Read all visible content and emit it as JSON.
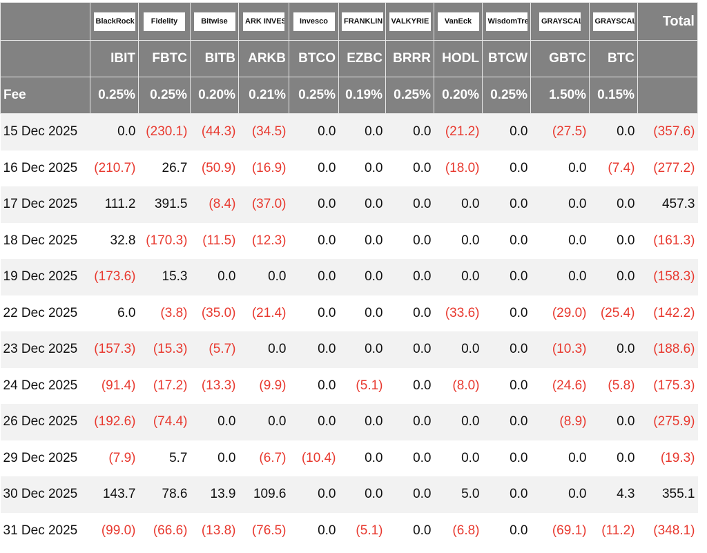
{
  "logos": [
    "BlackRock",
    "Fidelity",
    "Bitwise",
    "ARK INVEST",
    "Invesco",
    "FRANKLIN TEMPLETON",
    "VALKYRIE",
    "VanEck",
    "WisdomTree",
    "GRAYSCALE",
    "GRAYSCALE"
  ],
  "total_label": "Total",
  "tickers": [
    "IBIT",
    "FBTC",
    "BITB",
    "ARKB",
    "BTCO",
    "EZBC",
    "BRRR",
    "HODL",
    "BTCW",
    "GBTC",
    "BTC"
  ],
  "fee_label": "Fee",
  "fees": [
    "0.25%",
    "0.25%",
    "0.20%",
    "0.21%",
    "0.25%",
    "0.19%",
    "0.25%",
    "0.20%",
    "0.25%",
    "1.50%",
    "0.15%"
  ],
  "colors": {
    "header_bg": "#828282",
    "negative": "#e8392f",
    "stripe": "#f2f2f2"
  },
  "rows": [
    {
      "date": "15 Dec 2025",
      "values": [
        "0.0",
        "(230.1)",
        "(44.3)",
        "(34.5)",
        "0.0",
        "0.0",
        "0.0",
        "(21.2)",
        "0.0",
        "(27.5)",
        "0.0",
        "(357.6)"
      ]
    },
    {
      "date": "16 Dec 2025",
      "values": [
        "(210.7)",
        "26.7",
        "(50.9)",
        "(16.9)",
        "0.0",
        "0.0",
        "0.0",
        "(18.0)",
        "0.0",
        "0.0",
        "(7.4)",
        "(277.2)"
      ]
    },
    {
      "date": "17 Dec 2025",
      "values": [
        "111.2",
        "391.5",
        "(8.4)",
        "(37.0)",
        "0.0",
        "0.0",
        "0.0",
        "0.0",
        "0.0",
        "0.0",
        "0.0",
        "457.3"
      ]
    },
    {
      "date": "18 Dec 2025",
      "values": [
        "32.8",
        "(170.3)",
        "(11.5)",
        "(12.3)",
        "0.0",
        "0.0",
        "0.0",
        "0.0",
        "0.0",
        "0.0",
        "0.0",
        "(161.3)"
      ]
    },
    {
      "date": "19 Dec 2025",
      "values": [
        "(173.6)",
        "15.3",
        "0.0",
        "0.0",
        "0.0",
        "0.0",
        "0.0",
        "0.0",
        "0.0",
        "0.0",
        "0.0",
        "(158.3)"
      ]
    },
    {
      "date": "22 Dec 2025",
      "values": [
        "6.0",
        "(3.8)",
        "(35.0)",
        "(21.4)",
        "0.0",
        "0.0",
        "0.0",
        "(33.6)",
        "0.0",
        "(29.0)",
        "(25.4)",
        "(142.2)"
      ]
    },
    {
      "date": "23 Dec 2025",
      "values": [
        "(157.3)",
        "(15.3)",
        "(5.7)",
        "0.0",
        "0.0",
        "0.0",
        "0.0",
        "0.0",
        "0.0",
        "(10.3)",
        "0.0",
        "(188.6)"
      ]
    },
    {
      "date": "24 Dec 2025",
      "values": [
        "(91.4)",
        "(17.2)",
        "(13.3)",
        "(9.9)",
        "0.0",
        "(5.1)",
        "0.0",
        "(8.0)",
        "0.0",
        "(24.6)",
        "(5.8)",
        "(175.3)"
      ]
    },
    {
      "date": "26 Dec 2025",
      "values": [
        "(192.6)",
        "(74.4)",
        "0.0",
        "0.0",
        "0.0",
        "0.0",
        "0.0",
        "0.0",
        "0.0",
        "(8.9)",
        "0.0",
        "(275.9)"
      ]
    },
    {
      "date": "29 Dec 2025",
      "values": [
        "(7.9)",
        "5.7",
        "0.0",
        "(6.7)",
        "(10.4)",
        "0.0",
        "0.0",
        "0.0",
        "0.0",
        "0.0",
        "0.0",
        "(19.3)"
      ]
    },
    {
      "date": "30 Dec 2025",
      "values": [
        "143.7",
        "78.6",
        "13.9",
        "109.6",
        "0.0",
        "0.0",
        "0.0",
        "5.0",
        "0.0",
        "0.0",
        "4.3",
        "355.1"
      ]
    },
    {
      "date": "31 Dec 2025",
      "values": [
        "(99.0)",
        "(66.6)",
        "(13.8)",
        "(76.5)",
        "0.0",
        "(5.1)",
        "0.0",
        "(6.8)",
        "0.0",
        "(69.1)",
        "(11.2)",
        "(348.1)"
      ]
    }
  ]
}
